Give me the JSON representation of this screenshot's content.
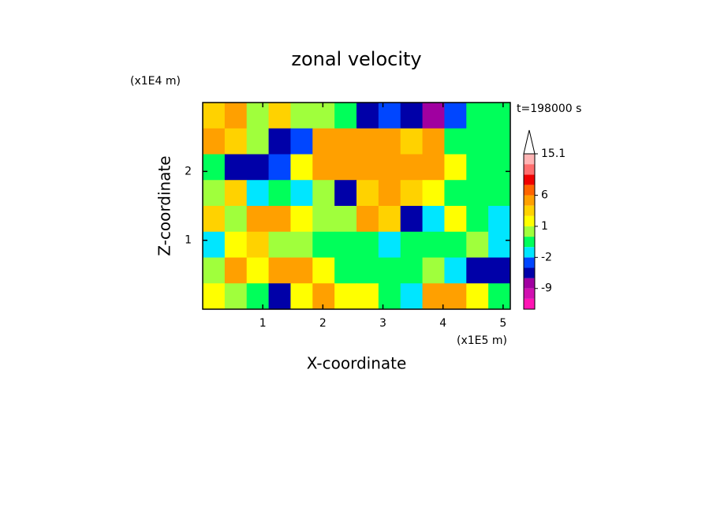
{
  "chart_data": {
    "type": "contour",
    "title": "zonal velocity",
    "x_label": "X-coordinate",
    "y_label": "Z-coordinate",
    "x_unit": "(x1E5 m)",
    "y_unit": "(x1E4 m)",
    "annotation": "t=198000 s",
    "xlim": [
      0,
      5.12
    ],
    "ylim": [
      0,
      3
    ],
    "xticks": [
      1,
      2,
      3,
      4,
      5
    ],
    "yticks": [
      1,
      2
    ],
    "z": [
      [
        2,
        3,
        0.5,
        2,
        0.5,
        0.5,
        -1,
        -6,
        -3,
        -6,
        -9,
        -3,
        -1,
        -1
      ],
      [
        3,
        2,
        0.5,
        -6,
        -3,
        3,
        4,
        3,
        3,
        2,
        3,
        -1,
        -1,
        -1
      ],
      [
        -1,
        -6,
        -6,
        -3,
        1,
        4,
        4,
        3,
        4,
        4,
        3,
        1,
        -1,
        -1
      ],
      [
        0.5,
        2,
        -2,
        -1,
        -2,
        0.5,
        -6,
        2,
        3,
        2,
        1,
        -1,
        -1,
        -1
      ],
      [
        2,
        0.5,
        3,
        3,
        1,
        0.5,
        0.5,
        4,
        2,
        -6,
        -2,
        1,
        -1,
        -2
      ],
      [
        -2,
        1,
        2,
        0.5,
        0.5,
        -1,
        -1,
        -1,
        -2,
        -1,
        -1,
        -1,
        0.5,
        -2
      ],
      [
        0.5,
        3,
        1,
        3,
        3,
        1,
        -1,
        -1,
        -1,
        -1,
        0.5,
        -2,
        -6,
        -6
      ],
      [
        1,
        0.5,
        -1,
        -6,
        1,
        4,
        1,
        1,
        -1,
        -2,
        3,
        4,
        1,
        -1
      ]
    ],
    "levels": [
      -15,
      -12,
      -9,
      -6,
      -4,
      -2,
      -1,
      0,
      1,
      2,
      3,
      6,
      9,
      11,
      13,
      15.1
    ],
    "colors": [
      "#ff14b4",
      "#d010b0",
      "#a000a0",
      "#0000a8",
      "#0046ff",
      "#00e6ff",
      "#00ff5a",
      "#a0ff3c",
      "#ffff00",
      "#ffd200",
      "#ffa000",
      "#ff6400",
      "#f00000",
      "#ff6e6e",
      "#ffb4b4"
    ],
    "colorbar_ticks": [
      -9,
      -2,
      1,
      6,
      15.1
    ]
  }
}
